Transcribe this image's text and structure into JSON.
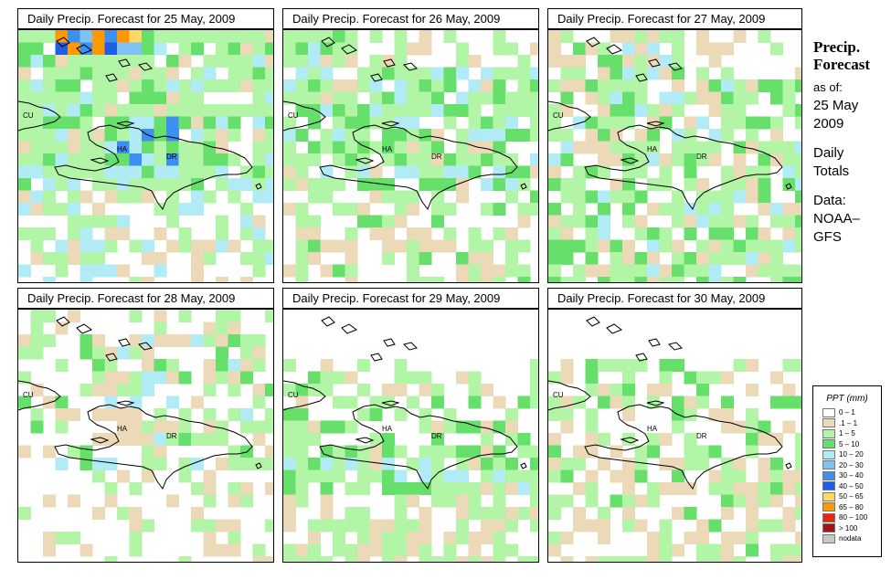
{
  "panels": [
    {
      "title": "Daily Precip. Forecast for  25 May, 2009",
      "seed": 11,
      "pattern": "heavy"
    },
    {
      "title": "Daily Precip. Forecast for  26 May, 2009",
      "seed": 23,
      "pattern": "moderate"
    },
    {
      "title": "Daily Precip. Forecast for  27 May, 2009",
      "seed": 37,
      "pattern": "mixed"
    },
    {
      "title": "Daily Precip. Forecast for  28 May, 2009",
      "seed": 41,
      "pattern": "light"
    },
    {
      "title": "Daily Precip. Forecast for  29 May, 2009",
      "seed": 53,
      "pattern": "lightsouth"
    },
    {
      "title": "Daily Precip. Forecast for  30 May, 2009",
      "seed": 67,
      "pattern": "lightest"
    }
  ],
  "map_labels": {
    "cuba": "CU",
    "haiti": "HA",
    "dominican_republic": "DR"
  },
  "info": {
    "title_line1": "Precip.",
    "title_line2": "Forecast",
    "as_of": "as of:",
    "date_line1": "25 May",
    "date_line2": "2009",
    "totals_line1": "Daily",
    "totals_line2": "Totals",
    "data_line1": "Data:",
    "data_line2": "NOAA–",
    "data_line3": "GFS"
  },
  "legend": {
    "title": "PPT (mm)",
    "items": [
      {
        "label": "0 – 1",
        "color": "#ffffff"
      },
      {
        "label": ".1 – 1",
        "color": "#ecd9b7"
      },
      {
        "label": "1 – 5",
        "color": "#b3f5a6"
      },
      {
        "label": "5 – 10",
        "color": "#66e06a"
      },
      {
        "label": "10 – 20",
        "color": "#b1ebf5"
      },
      {
        "label": "20 – 30",
        "color": "#7fc3f5"
      },
      {
        "label": "30 – 40",
        "color": "#3d8ff0"
      },
      {
        "label": "40 – 50",
        "color": "#1f5ee8"
      },
      {
        "label": "50 – 65",
        "color": "#ffd966"
      },
      {
        "label": "65 – 80",
        "color": "#ff9900"
      },
      {
        "label": "80 – 100",
        "color": "#e8260a"
      },
      {
        "label": "> 100",
        "color": "#a31414"
      },
      {
        "label": "nodata",
        "color": "#c8c8c8"
      }
    ]
  }
}
